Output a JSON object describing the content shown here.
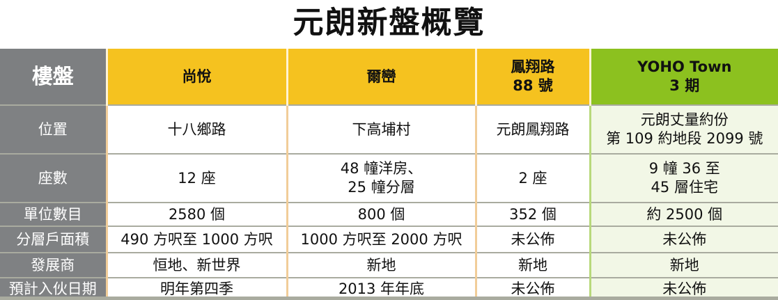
{
  "title": "元朗新盤概覽",
  "header": {
    "label": "樓盤",
    "projects": [
      {
        "line1": "尚悅",
        "line2": ""
      },
      {
        "line1": "爾巒",
        "line2": ""
      },
      {
        "line1": "鳳翔路",
        "line2": "88 號"
      },
      {
        "line1": "YOHO Town",
        "line2": "3 期"
      }
    ]
  },
  "rows": [
    {
      "label": "位置",
      "cells": [
        [
          "十八鄉路"
        ],
        [
          "下高埔村"
        ],
        [
          "元朗鳳翔路"
        ],
        [
          "元朗丈量約份",
          "第 109 約地段 2099 號"
        ]
      ]
    },
    {
      "label": "座數",
      "cells": [
        [
          "12 座"
        ],
        [
          "48 幢洋房、",
          "25 幢分層"
        ],
        [
          "2 座"
        ],
        [
          "9 幢 36 至",
          "45 層住宅"
        ]
      ]
    },
    {
      "label": "單位數目",
      "cells": [
        [
          "2580 個"
        ],
        [
          "800 個"
        ],
        [
          "352 個"
        ],
        [
          "約 2500 個"
        ]
      ]
    },
    {
      "label": "分層戶面積",
      "cells": [
        [
          "490 方呎至 1000 方呎"
        ],
        [
          "1000 方呎至 2000 方呎"
        ],
        [
          "未公佈"
        ],
        [
          "未公佈"
        ]
      ]
    },
    {
      "label": "發展商",
      "cells": [
        [
          "恒地、新世界"
        ],
        [
          "新地"
        ],
        [
          "新地"
        ],
        [
          "新地"
        ]
      ]
    },
    {
      "label": "預計入伙日期",
      "cells": [
        [
          "明年第四季"
        ],
        [
          "2013 年年底"
        ],
        [
          "未公佈"
        ],
        [
          "未公佈"
        ]
      ]
    }
  ],
  "colors": {
    "header_gray": "#7d7f81",
    "header_yellow": "#f5c21f",
    "header_green": "#8cc11f"
  }
}
